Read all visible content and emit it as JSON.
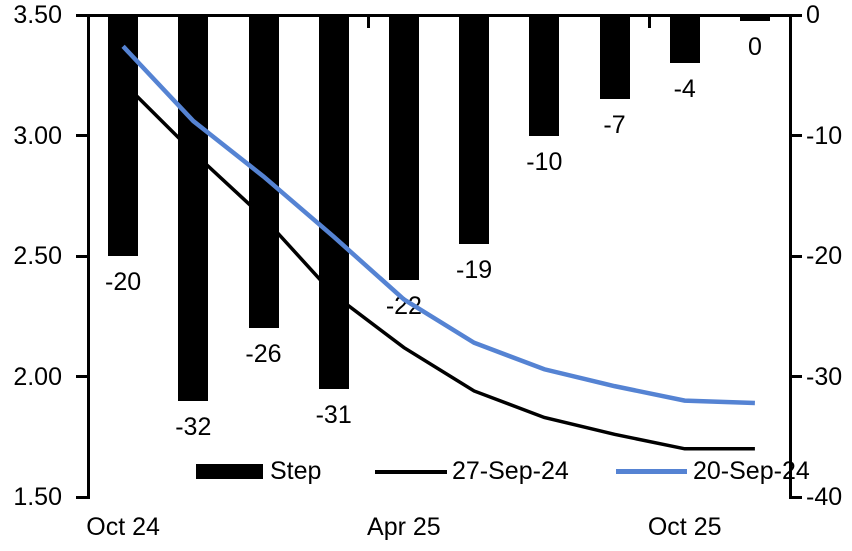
{
  "chart_data": {
    "type": "combo-bar-line",
    "n_categories": 10,
    "x_tick_labels": [
      {
        "label": "Oct 24",
        "category_index": 0
      },
      {
        "label": "Apr 25",
        "category_index": 4
      },
      {
        "label": "Oct 25",
        "category_index": 8
      }
    ],
    "left_axis": {
      "min": 1.5,
      "max": 3.5,
      "tick_labels": [
        "3.50",
        "3.00",
        "2.50",
        "2.00",
        "1.50"
      ]
    },
    "right_axis": {
      "min": -40,
      "max": 0,
      "tick_labels": [
        "0",
        "-10",
        "-20",
        "-30",
        "-40"
      ]
    },
    "bar_series": {
      "name": "Step",
      "axis": "right",
      "color": "#000000",
      "values": [
        -20,
        -32,
        -26,
        -31,
        -22,
        -19,
        -10,
        -7,
        -4,
        0
      ],
      "value_labels": [
        "-20",
        "-32",
        "-26",
        "-31",
        "-22",
        "-19",
        "-10",
        "-7",
        "-4",
        "0"
      ]
    },
    "line_series": [
      {
        "name": "27-Sep-24",
        "axis": "left",
        "color": "#000000",
        "stroke_width": 3.5,
        "values": [
          3.22,
          2.93,
          2.66,
          2.34,
          2.12,
          1.94,
          1.83,
          1.76,
          1.7,
          1.7
        ]
      },
      {
        "name": "20-Sep-24",
        "axis": "left",
        "color": "#5583D3",
        "stroke_width": 4.5,
        "values": [
          3.37,
          3.06,
          2.83,
          2.58,
          2.32,
          2.14,
          2.03,
          1.96,
          1.9,
          1.89
        ]
      }
    ],
    "legend": {
      "position": "bottom",
      "items": [
        "Step",
        "27-Sep-24",
        "20-Sep-24"
      ]
    },
    "grid": "off",
    "background": "#FFFFFF"
  }
}
